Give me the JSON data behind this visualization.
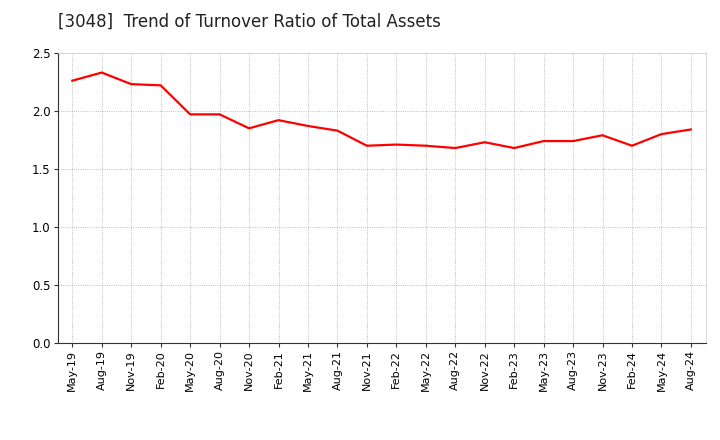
{
  "title": "[3048]  Trend of Turnover Ratio of Total Assets",
  "line_color": "#FF0000",
  "background_color": "#FFFFFF",
  "grid_color": "#AAAAAA",
  "ylim": [
    0.0,
    2.5
  ],
  "yticks": [
    0.0,
    0.5,
    1.0,
    1.5,
    2.0,
    2.5
  ],
  "x_labels": [
    "May-19",
    "Aug-19",
    "Nov-19",
    "Feb-20",
    "May-20",
    "Aug-20",
    "Nov-20",
    "Feb-21",
    "May-21",
    "Aug-21",
    "Nov-21",
    "Feb-22",
    "May-22",
    "Aug-22",
    "Nov-22",
    "Feb-23",
    "May-23",
    "Aug-23",
    "Nov-23",
    "Feb-24",
    "May-24",
    "Aug-24"
  ],
  "values": [
    2.26,
    2.33,
    2.23,
    2.22,
    1.97,
    1.97,
    1.85,
    1.92,
    1.87,
    1.83,
    1.7,
    1.71,
    1.7,
    1.68,
    1.73,
    1.68,
    1.74,
    1.74,
    1.79,
    1.7,
    1.8,
    1.84
  ],
  "title_fontsize": 12,
  "tick_fontsize": 8,
  "line_width": 1.6
}
